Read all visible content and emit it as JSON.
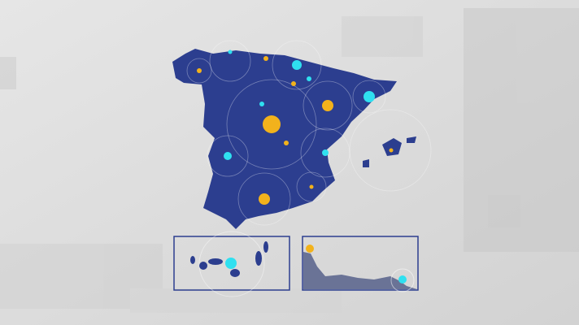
{
  "map": {
    "colors": {
      "background": "#dcdcdc",
      "land": "#2c3e8f",
      "land_dark": "#25357c",
      "marker_yellow": "#f2b21c",
      "marker_cyan": "#2fe0f0",
      "inset_border": "#2c3e8f",
      "inset_land": "#6a7396"
    },
    "insets": [
      "canary-islands",
      "ceuta-melilla"
    ]
  }
}
